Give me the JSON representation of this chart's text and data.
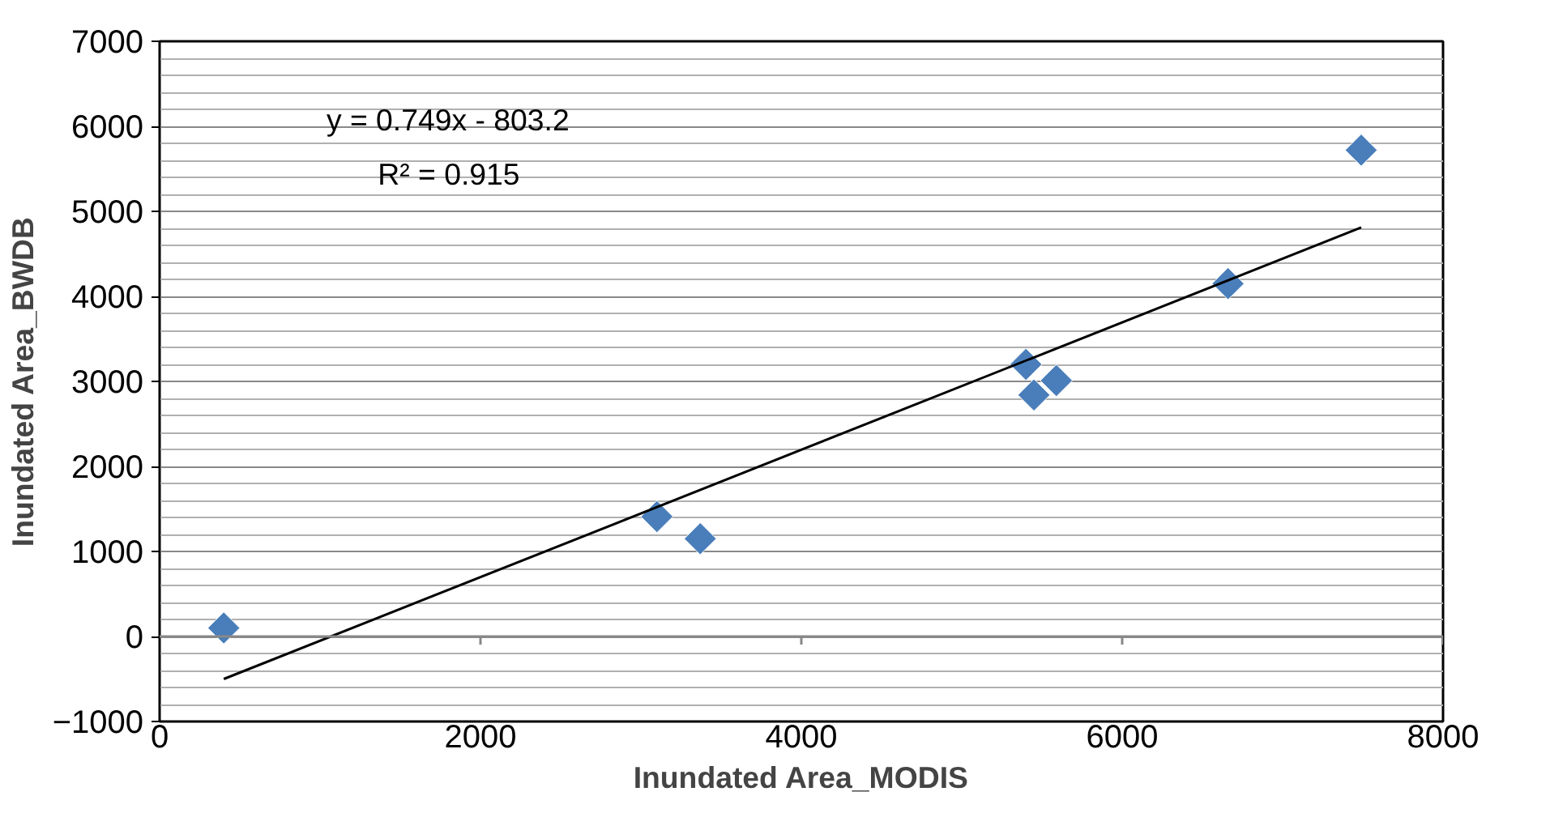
{
  "chart_data": {
    "type": "scatter",
    "xlabel": "Inundated Area_MODIS",
    "ylabel": "Inundated Area_BWDB",
    "xlim": [
      0,
      8000
    ],
    "xticks": [
      0,
      2000,
      4000,
      6000,
      8000
    ],
    "ylim": [
      -1000,
      7000
    ],
    "yticks": [
      -1000,
      0,
      1000,
      2000,
      3000,
      4000,
      5000,
      6000,
      7000
    ],
    "grid": "y",
    "marker": "diamond",
    "series": [
      {
        "color": "#4a7ebb",
        "x": [
          400,
          3100,
          3370,
          5400,
          5450,
          5590,
          6660,
          7490
        ],
        "values": [
          100,
          1410,
          1150,
          3200,
          2840,
          3010,
          4150,
          5720
        ]
      },
      {
        "type": "line",
        "color": "#000000",
        "x": [
          400,
          7490
        ],
        "values": [
          -500,
          4810
        ],
        "line_style": "solid",
        "marker": "none"
      }
    ],
    "annotations": [
      "y = 0.749x - 803.2",
      "R² = 0.915"
    ]
  }
}
